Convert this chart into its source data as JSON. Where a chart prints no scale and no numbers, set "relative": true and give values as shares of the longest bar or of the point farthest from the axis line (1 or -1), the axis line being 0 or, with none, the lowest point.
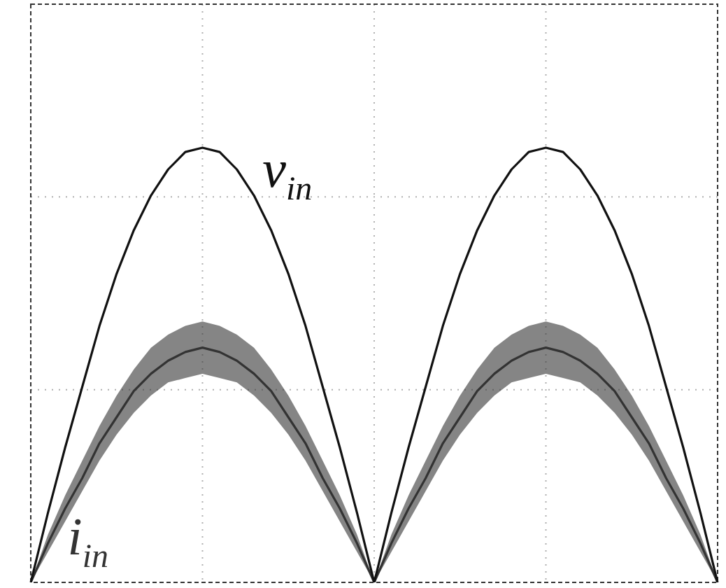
{
  "chart_data": {
    "type": "line",
    "relative": true,
    "grid": true,
    "legend": false,
    "marker": "none",
    "line_style": "solid",
    "categories": [
      null,
      null,
      null,
      null,
      null,
      null,
      null,
      null,
      null,
      null,
      null,
      null,
      null,
      null,
      null,
      null,
      null,
      null,
      null,
      null,
      null,
      null,
      null,
      null,
      null,
      null,
      null,
      null,
      null,
      null,
      null,
      null,
      null,
      null,
      null,
      null,
      null,
      null,
      null,
      null,
      null
    ],
    "series": [
      {
        "name": "v$_{in}$",
        "color": "#111111",
        "values": [
          0,
          0.16,
          0.31,
          0.45,
          0.59,
          0.71,
          0.81,
          0.89,
          0.95,
          0.99,
          1,
          0.99,
          0.95,
          0.89,
          0.81,
          0.71,
          0.59,
          0.45,
          0.31,
          0.16,
          0,
          0.16,
          0.31,
          0.45,
          0.59,
          0.71,
          0.81,
          0.89,
          0.95,
          0.99,
          1,
          0.99,
          0.95,
          0.89,
          0.81,
          0.71,
          0.59,
          0.45,
          0.31,
          0.16,
          0
        ]
      },
      {
        "name": "i$_{in}$",
        "color": "#333333",
        "values": [
          0,
          0.09,
          0.17,
          0.24,
          0.32,
          0.38,
          0.44,
          0.48,
          0.51,
          0.53,
          0.54,
          0.53,
          0.51,
          0.48,
          0.44,
          0.38,
          0.32,
          0.24,
          0.17,
          0.09,
          0,
          0.09,
          0.17,
          0.24,
          0.32,
          0.38,
          0.44,
          0.48,
          0.51,
          0.53,
          0.54,
          0.53,
          0.51,
          0.48,
          0.44,
          0.38,
          0.32,
          0.24,
          0.17,
          0.09,
          0
        ],
        "lower": [
          0,
          0.07,
          0.14,
          0.21,
          0.28,
          0.34,
          0.39,
          0.43,
          0.46,
          0.47,
          0.48,
          0.47,
          0.46,
          0.43,
          0.39,
          0.34,
          0.28,
          0.21,
          0.14,
          0.07,
          0,
          0.07,
          0.14,
          0.21,
          0.28,
          0.34,
          0.39,
          0.43,
          0.46,
          0.47,
          0.48,
          0.47,
          0.46,
          0.43,
          0.39,
          0.34,
          0.28,
          0.21,
          0.14,
          0.07,
          0
        ],
        "upper": [
          0,
          0.11,
          0.2,
          0.28,
          0.36,
          0.43,
          0.49,
          0.54,
          0.57,
          0.59,
          0.6,
          0.59,
          0.57,
          0.54,
          0.49,
          0.43,
          0.36,
          0.28,
          0.2,
          0.11,
          0,
          0.11,
          0.2,
          0.28,
          0.36,
          0.43,
          0.49,
          0.54,
          0.57,
          0.59,
          0.6,
          0.59,
          0.57,
          0.54,
          0.49,
          0.43,
          0.36,
          0.28,
          0.2,
          0.11,
          0
        ]
      }
    ]
  }
}
